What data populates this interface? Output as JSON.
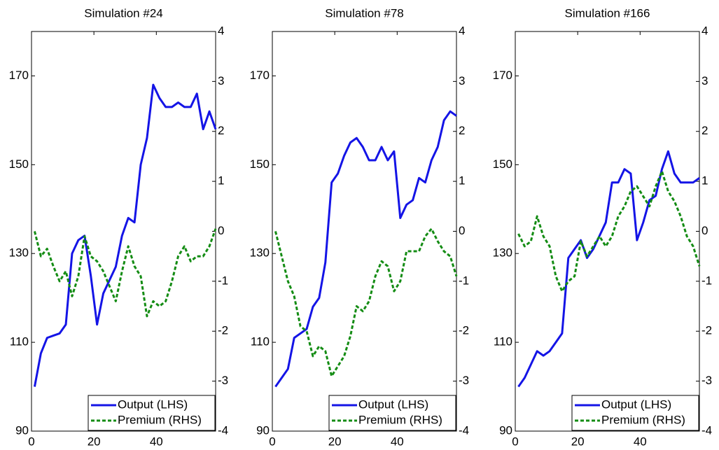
{
  "chart_data": [
    {
      "type": "line",
      "title": "Simulation #24",
      "legend": "lower right",
      "x": [
        1,
        3,
        5,
        7,
        9,
        11,
        13,
        15,
        17,
        19,
        21,
        23,
        25,
        27,
        29,
        31,
        33,
        35,
        37,
        39,
        41,
        43,
        45,
        47,
        49,
        51,
        53,
        55,
        57,
        59
      ],
      "xlim": [
        0,
        59
      ],
      "xticks": [
        0,
        20,
        40
      ],
      "ylim": [
        90,
        180
      ],
      "yticks": [
        90,
        110,
        130,
        150,
        170
      ],
      "y2lim": [
        -4,
        4
      ],
      "y2ticks": [
        -4,
        -3,
        -2,
        -1,
        0,
        1,
        2,
        3,
        4
      ],
      "series": [
        {
          "name": "Output (LHS)",
          "color": "#1414e6",
          "line_style": "solid",
          "values": [
            100,
            107.5,
            111,
            111.5,
            112,
            114,
            130,
            133,
            134,
            125,
            114,
            121,
            124,
            127,
            134,
            138,
            137,
            150,
            156,
            168,
            165,
            163,
            163,
            164,
            163,
            163,
            166,
            158,
            162,
            158
          ]
        },
        {
          "name": "Premium (RHS)",
          "color": "#148c14",
          "line_style": "dotted",
          "axis": "y2",
          "values": [
            0,
            -0.5,
            -0.35,
            -0.7,
            -1.0,
            -0.8,
            -1.3,
            -0.9,
            -0.1,
            -0.5,
            -0.6,
            -0.8,
            -1.1,
            -1.4,
            -0.8,
            -0.3,
            -0.7,
            -0.9,
            -1.7,
            -1.4,
            -1.5,
            -1.4,
            -1.0,
            -0.5,
            -0.3,
            -0.6,
            -0.5,
            -0.5,
            -0.3,
            0.05
          ]
        }
      ]
    },
    {
      "type": "line",
      "title": "Simulation #78",
      "legend": "lower right",
      "x": [
        1,
        3,
        5,
        7,
        9,
        11,
        13,
        15,
        17,
        19,
        21,
        23,
        25,
        27,
        29,
        31,
        33,
        35,
        37,
        39,
        41,
        43,
        45,
        47,
        49,
        51,
        53,
        55,
        57,
        59
      ],
      "xlim": [
        0,
        59
      ],
      "xticks": [
        0,
        20,
        40
      ],
      "ylim": [
        90,
        180
      ],
      "yticks": [
        90,
        110,
        130,
        150,
        170
      ],
      "y2lim": [
        -4,
        4
      ],
      "y2ticks": [
        -4,
        -3,
        -2,
        -1,
        0,
        1,
        2,
        3,
        4
      ],
      "series": [
        {
          "name": "Output (LHS)",
          "color": "#1414e6",
          "line_style": "solid",
          "values": [
            100,
            102,
            104,
            111,
            112,
            113,
            118,
            120,
            128,
            146,
            148,
            152,
            155,
            156,
            154,
            151,
            151,
            154,
            151,
            153,
            138,
            141,
            142,
            147,
            146,
            151,
            154,
            160,
            162,
            161
          ]
        },
        {
          "name": "Premium (RHS)",
          "color": "#148c14",
          "line_style": "dotted",
          "axis": "y2",
          "values": [
            0,
            -0.5,
            -1.0,
            -1.3,
            -1.9,
            -2.0,
            -2.5,
            -2.3,
            -2.4,
            -2.9,
            -2.7,
            -2.5,
            -2.1,
            -1.5,
            -1.6,
            -1.4,
            -0.9,
            -0.6,
            -0.7,
            -1.2,
            -1.0,
            -0.4,
            -0.4,
            -0.4,
            -0.1,
            0.05,
            -0.2,
            -0.4,
            -0.5,
            -0.9
          ]
        }
      ]
    },
    {
      "type": "line",
      "title": "Simulation #166",
      "legend": "lower right",
      "x": [
        1,
        3,
        5,
        7,
        9,
        11,
        13,
        15,
        17,
        19,
        21,
        23,
        25,
        27,
        29,
        31,
        33,
        35,
        37,
        39,
        41,
        43,
        45,
        47,
        49,
        51,
        53,
        55,
        57,
        59
      ],
      "xlim": [
        0,
        59
      ],
      "xticks": [
        0,
        20,
        40
      ],
      "ylim": [
        90,
        180
      ],
      "yticks": [
        90,
        110,
        130,
        150,
        170
      ],
      "y2lim": [
        -4,
        4
      ],
      "y2ticks": [
        -4,
        -3,
        -2,
        -1,
        0,
        1,
        2,
        3,
        4
      ],
      "series": [
        {
          "name": "Output (LHS)",
          "color": "#1414e6",
          "line_style": "solid",
          "values": [
            100,
            102,
            105,
            108,
            107,
            108,
            110,
            112,
            129,
            131,
            133,
            129,
            131,
            134,
            137,
            146,
            146,
            149,
            148,
            133,
            137,
            142,
            143,
            149,
            153,
            148,
            146,
            146,
            146,
            147
          ]
        },
        {
          "name": "Premium (RHS)",
          "color": "#148c14",
          "line_style": "dotted",
          "axis": "y2",
          "values": [
            -0.05,
            -0.3,
            -0.2,
            0.3,
            -0.1,
            -0.3,
            -0.9,
            -1.2,
            -1.0,
            -0.9,
            -0.2,
            -0.5,
            -0.3,
            -0.1,
            -0.3,
            -0.1,
            0.3,
            0.5,
            0.8,
            0.9,
            0.7,
            0.5,
            0.9,
            1.2,
            0.8,
            0.6,
            0.3,
            -0.1,
            -0.3,
            -0.7
          ]
        }
      ]
    }
  ]
}
